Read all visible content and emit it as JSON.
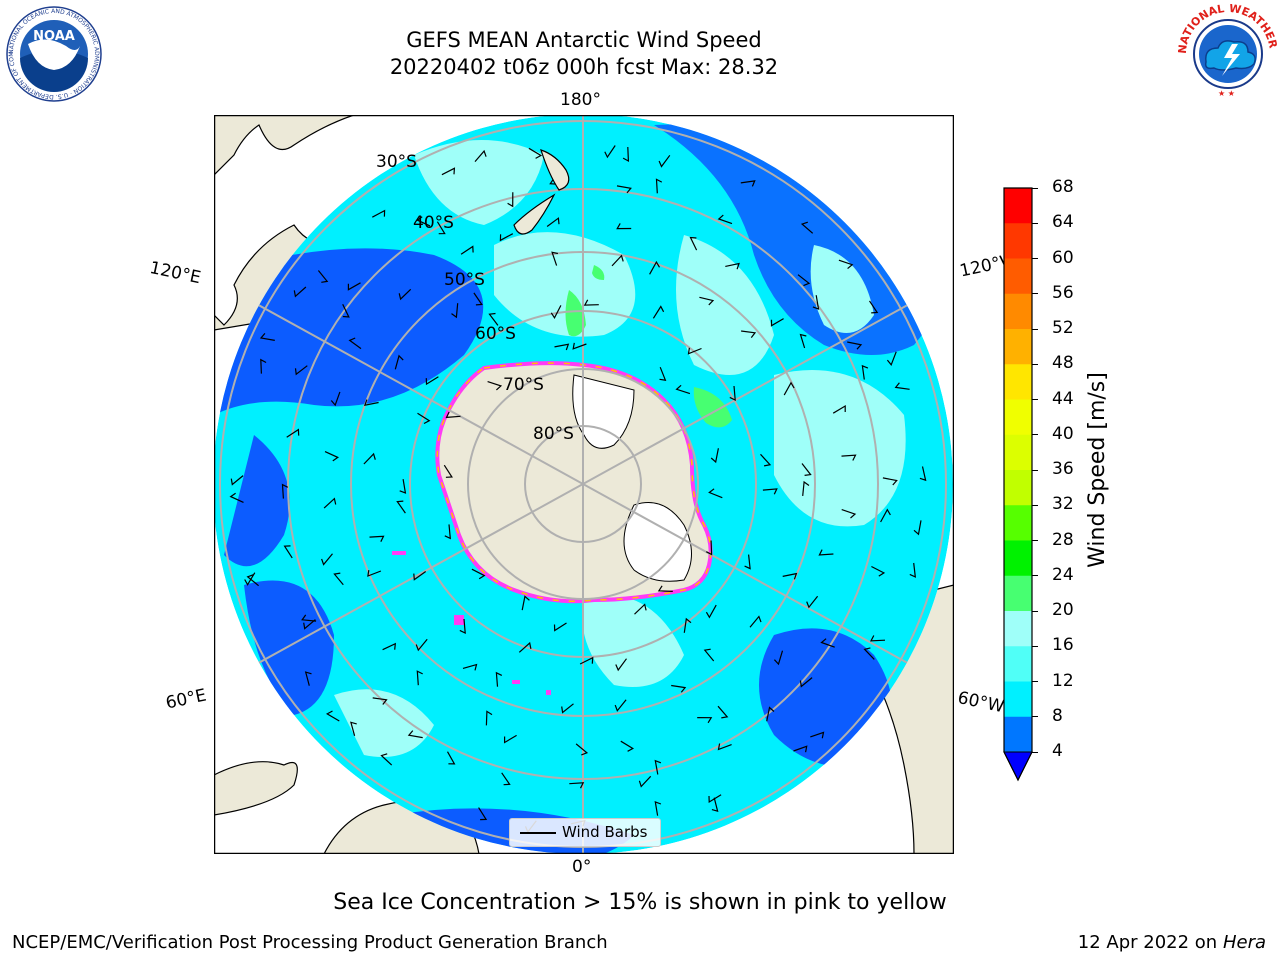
{
  "title": {
    "line1": "GEFS MEAN Antarctic Wind Speed",
    "line2": "20220402 t06z 000h fcst   Max: 28.32"
  },
  "logos": {
    "left": {
      "name": "noaa-logo",
      "text": "NOAA",
      "ring_text": "NATIONAL OCEANIC AND ATMOSPHERIC ADMINISTRATION · U.S. DEPARTMENT OF COMMERCE"
    },
    "right": {
      "name": "nws-logo",
      "ring_text": "NATIONAL WEATHER SERVICE"
    }
  },
  "map": {
    "projection": "south-polar-stereographic",
    "longitude_labels": {
      "top": "180°",
      "bottom": "0°",
      "upper_left": "120°E",
      "upper_right": "120°W",
      "lower_left": "60°E",
      "lower_right": "60°W"
    },
    "latitude_labels": [
      "30°S",
      "40°S",
      "50°S",
      "60°S",
      "70°S",
      "80°S"
    ],
    "legend_label": "Wind Barbs",
    "colors": {
      "land": "#ece9d8",
      "ice": "#ffffff",
      "grid": "#b0b0b0",
      "ocean_low": "#00f0ff",
      "ocean_mid": "#9ffff9",
      "ocean_high": "#0c5cff",
      "sea_ice_edge": "#ff3cf5",
      "sea_ice_yellow": "#ffc200"
    }
  },
  "colorbar": {
    "label": "Wind Speed [m/s]",
    "ticks": [
      "68",
      "64",
      "60",
      "56",
      "52",
      "48",
      "44",
      "40",
      "36",
      "32",
      "28",
      "24",
      "20",
      "16",
      "12",
      "8",
      "4"
    ],
    "colors_top_to_bottom": [
      "#ff0000",
      "#ff3800",
      "#ff5c00",
      "#ff8a00",
      "#ffb100",
      "#ffe600",
      "#f0ff00",
      "#dcff00",
      "#c1ff00",
      "#56ff00",
      "#00f200",
      "#47ff71",
      "#9ffff9",
      "#50fff7",
      "#00f0ff",
      "#0077ff"
    ],
    "extend_color": "#0000ff"
  },
  "note": "Sea Ice Concentration > 15% is shown in pink to yellow",
  "footer": {
    "left": "NCEP/EMC/Verification Post Processing Product Generation Branch",
    "right_prefix": "12 Apr 2022 on ",
    "right_italic": "Hera"
  }
}
